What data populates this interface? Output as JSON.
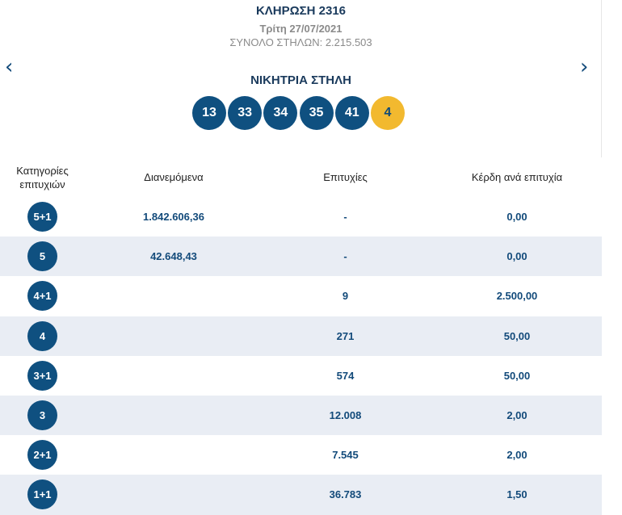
{
  "draw": {
    "title": "ΚΛΗΡΩΣΗ 2316",
    "date": "Τρίτη 27/07/2021",
    "total_columns": "ΣΥΝΟΛΟ ΣΤΗΛΩΝ: 2.215.503"
  },
  "nav": {
    "prev_glyph": "‹",
    "next_glyph": "›"
  },
  "winning": {
    "title": "ΝΙΚΗΤΡΙΑ ΣΤΗΛΗ",
    "numbers": [
      "13",
      "33",
      "34",
      "35",
      "41"
    ],
    "joker": "4"
  },
  "table": {
    "headers": {
      "category": "Κατηγορίες επιτυχιών",
      "distributed": "Διανεμόμενα",
      "winners": "Επιτυχίες",
      "prize_per_winner": "Κέρδη ανά επιτυχία"
    },
    "rows": [
      {
        "category": "5+1",
        "distributed": "1.842.606,36",
        "winners": "-",
        "prize": "0,00"
      },
      {
        "category": "5",
        "distributed": "42.648,43",
        "winners": "-",
        "prize": "0,00"
      },
      {
        "category": "4+1",
        "distributed": "",
        "winners": "9",
        "prize": "2.500,00"
      },
      {
        "category": "4",
        "distributed": "",
        "winners": "271",
        "prize": "50,00"
      },
      {
        "category": "3+1",
        "distributed": "",
        "winners": "574",
        "prize": "50,00"
      },
      {
        "category": "3",
        "distributed": "",
        "winners": "12.008",
        "prize": "2,00"
      },
      {
        "category": "2+1",
        "distributed": "",
        "winners": "7.545",
        "prize": "2,00"
      },
      {
        "category": "1+1",
        "distributed": "",
        "winners": "36.783",
        "prize": "1,50"
      }
    ]
  },
  "colors": {
    "primary": "#0f5080",
    "joker": "#f2b92f",
    "row_alt": "#e9edf4",
    "text_dark": "#1a3a5c"
  }
}
